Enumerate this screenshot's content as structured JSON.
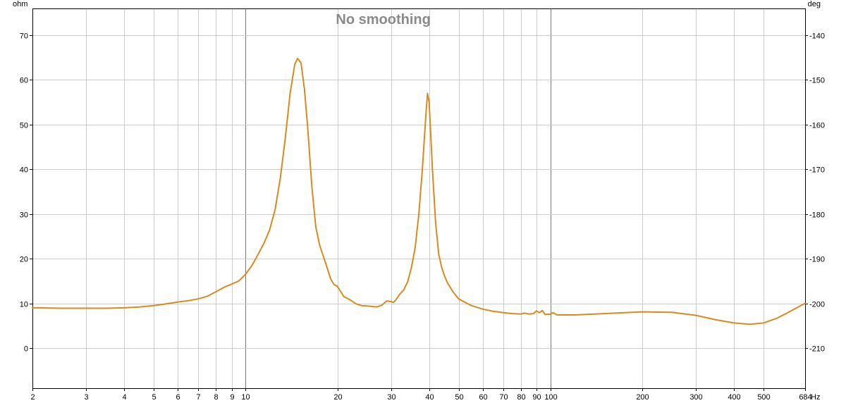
{
  "chart_data": {
    "type": "line",
    "title": "No smoothing",
    "x_unit": "Hz",
    "y_unit_left": "ohm",
    "y_unit_right": "deg",
    "x_scale": "log",
    "xlim": [
      2,
      684
    ],
    "ylim": [
      -9,
      76
    ],
    "y2lim": [
      -219,
      -134
    ],
    "x_ticks": [
      2,
      3,
      4,
      5,
      6,
      7,
      8,
      9,
      10,
      20,
      30,
      40,
      50,
      60,
      70,
      80,
      90,
      100,
      200,
      300,
      400,
      500,
      684
    ],
    "x_tick_labels": [
      "2",
      "3",
      "4",
      "5",
      "6",
      "7",
      "8",
      "9",
      "10",
      "20",
      "30",
      "40",
      "50",
      "60",
      "70",
      "80",
      "90",
      "100",
      "200",
      "300",
      "400",
      "500",
      "684"
    ],
    "x_major_ticks": [
      10,
      100
    ],
    "y_ticks": [
      0,
      10,
      20,
      30,
      40,
      50,
      60,
      70
    ],
    "y_tick_labels": [
      "0",
      "10",
      "20",
      "30",
      "40",
      "50",
      "60",
      "70"
    ],
    "y2_ticks": [
      -210,
      -200,
      -190,
      -180,
      -170,
      -160,
      -150,
      -140
    ],
    "y2_tick_labels": [
      "-210",
      "-200",
      "-190",
      "-180",
      "-170",
      "-160",
      "-150",
      "-140"
    ],
    "grid": true,
    "colors": {
      "series": "#d98a1f",
      "grid": "#cccccc",
      "major_grid": "#777777",
      "axis": "#000000",
      "title": "#8a8a8a"
    },
    "series": [
      {
        "points": [
          [
            2,
            9.0
          ],
          [
            2.5,
            8.9
          ],
          [
            3,
            8.9
          ],
          [
            3.5,
            8.9
          ],
          [
            4,
            9.0
          ],
          [
            4.5,
            9.2
          ],
          [
            5,
            9.5
          ],
          [
            5.5,
            9.9
          ],
          [
            6,
            10.3
          ],
          [
            6.5,
            10.6
          ],
          [
            7,
            11.0
          ],
          [
            7.5,
            11.6
          ],
          [
            8,
            12.6
          ],
          [
            8.5,
            13.6
          ],
          [
            9,
            14.3
          ],
          [
            9.5,
            15.0
          ],
          [
            10,
            16.5
          ],
          [
            10.5,
            18.5
          ],
          [
            11,
            21.0
          ],
          [
            11.5,
            23.5
          ],
          [
            12,
            26.5
          ],
          [
            12.5,
            31.0
          ],
          [
            13,
            38.0
          ],
          [
            13.5,
            47.0
          ],
          [
            14,
            57.0
          ],
          [
            14.5,
            63.5
          ],
          [
            14.8,
            64.8
          ],
          [
            15.2,
            63.8
          ],
          [
            15.6,
            58.0
          ],
          [
            16,
            49.0
          ],
          [
            16.5,
            36.0
          ],
          [
            17,
            27.0
          ],
          [
            17.5,
            23.0
          ],
          [
            18,
            20.5
          ],
          [
            18.5,
            18.0
          ],
          [
            19,
            15.5
          ],
          [
            19.5,
            14.2
          ],
          [
            20,
            13.8
          ],
          [
            21,
            11.5
          ],
          [
            22,
            10.8
          ],
          [
            23,
            9.9
          ],
          [
            24,
            9.5
          ],
          [
            25,
            9.4
          ],
          [
            26,
            9.3
          ],
          [
            27,
            9.2
          ],
          [
            28,
            9.6
          ],
          [
            29,
            10.5
          ],
          [
            30,
            10.4
          ],
          [
            30.5,
            10.2
          ],
          [
            31,
            10.6
          ],
          [
            32,
            12.0
          ],
          [
            33,
            13.0
          ],
          [
            34,
            14.8
          ],
          [
            35,
            18.0
          ],
          [
            36,
            22.5
          ],
          [
            37,
            30.0
          ],
          [
            38,
            40.0
          ],
          [
            39,
            52.0
          ],
          [
            39.5,
            57.0
          ],
          [
            40,
            55.0
          ],
          [
            41,
            40.0
          ],
          [
            42,
            28.0
          ],
          [
            43,
            21.0
          ],
          [
            44,
            18.0
          ],
          [
            45,
            16.0
          ],
          [
            46,
            14.5
          ],
          [
            48,
            12.5
          ],
          [
            50,
            11.0
          ],
          [
            55,
            9.5
          ],
          [
            60,
            8.7
          ],
          [
            65,
            8.2
          ],
          [
            70,
            7.9
          ],
          [
            75,
            7.7
          ],
          [
            80,
            7.6
          ],
          [
            82,
            7.8
          ],
          [
            85,
            7.6
          ],
          [
            88,
            7.7
          ],
          [
            90,
            8.3
          ],
          [
            92,
            7.9
          ],
          [
            94,
            8.4
          ],
          [
            96,
            7.5
          ],
          [
            100,
            7.6
          ],
          [
            102,
            7.9
          ],
          [
            105,
            7.4
          ],
          [
            110,
            7.4
          ],
          [
            120,
            7.4
          ],
          [
            150,
            7.7
          ],
          [
            200,
            8.1
          ],
          [
            250,
            8.0
          ],
          [
            300,
            7.3
          ],
          [
            350,
            6.3
          ],
          [
            400,
            5.6
          ],
          [
            450,
            5.3
          ],
          [
            500,
            5.6
          ],
          [
            550,
            6.6
          ],
          [
            600,
            7.9
          ],
          [
            650,
            9.2
          ],
          [
            684,
            10.0
          ]
        ]
      }
    ]
  }
}
